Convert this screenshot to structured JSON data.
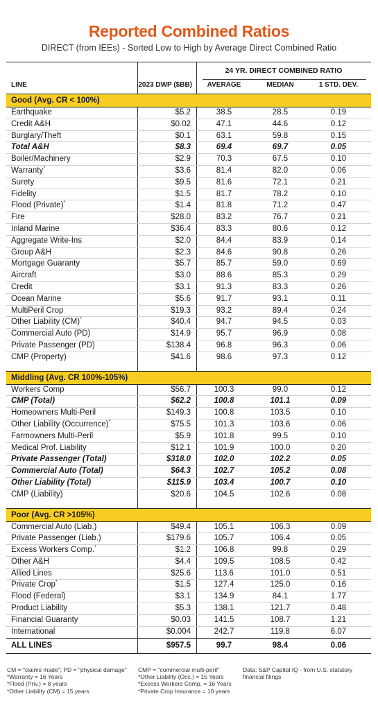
{
  "title": "Reported Combined Ratios",
  "subtitle": "DIRECT (from IEEs) - Sorted Low to High by Average Direct Combined Ratio",
  "header": {
    "group": "24 YR. DIRECT COMBINED RATIO",
    "line": "LINE",
    "dwp": "2023 DWP ($BB)",
    "average": "AVERAGE",
    "median": "MEDIAN",
    "std": "1 STD. DEV."
  },
  "sections": [
    {
      "name": "Good (Avg. CR < 100%)",
      "rows": [
        {
          "line": "Earthquake",
          "mark": "",
          "dwp": "$5.2",
          "avg": "38.5",
          "med": "28.5",
          "std": "0.19",
          "bold": false
        },
        {
          "line": "Credit A&H",
          "mark": "",
          "dwp": "$0.02",
          "avg": "47.1",
          "med": "44.6",
          "std": "0.12",
          "bold": false
        },
        {
          "line": "Burglary/Theft",
          "mark": "",
          "dwp": "$0.1",
          "avg": "63.1",
          "med": "59.8",
          "std": "0.15",
          "bold": false
        },
        {
          "line": "Total A&H",
          "mark": "",
          "dwp": "$8.3",
          "avg": "69.4",
          "med": "69.7",
          "std": "0.05",
          "bold": true
        },
        {
          "line": "Boiler/Machinery",
          "mark": "",
          "dwp": "$2.9",
          "avg": "70.3",
          "med": "67.5",
          "std": "0.10",
          "bold": false
        },
        {
          "line": "Warranty",
          "mark": "*",
          "dwp": "$3.6",
          "avg": "81.4",
          "med": "82.0",
          "std": "0.06",
          "bold": false
        },
        {
          "line": "Surety",
          "mark": "",
          "dwp": "$9.5",
          "avg": "81.6",
          "med": "72.1",
          "std": "0.21",
          "bold": false
        },
        {
          "line": "Fidelity",
          "mark": "",
          "dwp": "$1.5",
          "avg": "81.7",
          "med": "78.2",
          "std": "0.10",
          "bold": false
        },
        {
          "line": "Flood (Private)",
          "mark": "*",
          "dwp": "$1.4",
          "avg": "81.8",
          "med": "71.2",
          "std": "0.47",
          "bold": false
        },
        {
          "line": "Fire",
          "mark": "",
          "dwp": "$28.0",
          "avg": "83.2",
          "med": "76.7",
          "std": "0.21",
          "bold": false
        },
        {
          "line": "Inland Marine",
          "mark": "",
          "dwp": "$36.4",
          "avg": "83.3",
          "med": "80.6",
          "std": "0.12",
          "bold": false
        },
        {
          "line": "Aggregate Write-Ins",
          "mark": "",
          "dwp": "$2.0",
          "avg": "84.4",
          "med": "83.9",
          "std": "0.14",
          "bold": false
        },
        {
          "line": "Group A&H",
          "mark": "",
          "dwp": "$2.3",
          "avg": "84.6",
          "med": "90.8",
          "std": "0.26",
          "bold": false
        },
        {
          "line": "Mortgage Guaranty",
          "mark": "",
          "dwp": "$5.7",
          "avg": "85.7",
          "med": "59.0",
          "std": "0.69",
          "bold": false
        },
        {
          "line": "Aircraft",
          "mark": "",
          "dwp": "$3.0",
          "avg": "88.6",
          "med": "85.3",
          "std": "0.29",
          "bold": false
        },
        {
          "line": "Credit",
          "mark": "",
          "dwp": "$3.1",
          "avg": "91.3",
          "med": "83.3",
          "std": "0.26",
          "bold": false
        },
        {
          "line": "Ocean Marine",
          "mark": "",
          "dwp": "$5.6",
          "avg": "91.7",
          "med": "93.1",
          "std": "0.11",
          "bold": false
        },
        {
          "line": "MultiPeril Crop",
          "mark": "",
          "dwp": "$19.3",
          "avg": "93.2",
          "med": "89.4",
          "std": "0.24",
          "bold": false
        },
        {
          "line": "Other Liability (CM)",
          "mark": "*",
          "dwp": "$40.4",
          "avg": "94.7",
          "med": "94.5",
          "std": "0.03",
          "bold": false
        },
        {
          "line": "Commercial Auto (PD)",
          "mark": "",
          "dwp": "$14.9",
          "avg": "95.7",
          "med": "96.9",
          "std": "0.08",
          "bold": false
        },
        {
          "line": "Private Passenger (PD)",
          "mark": "",
          "dwp": "$138.4",
          "avg": "96.8",
          "med": "96.3",
          "std": "0.06",
          "bold": false
        },
        {
          "line": "CMP (Property)",
          "mark": "",
          "dwp": "$41.6",
          "avg": "98.6",
          "med": "97.3",
          "std": "0.12",
          "bold": false
        }
      ]
    },
    {
      "name": "Middling (Avg. CR 100%-105%)",
      "rows": [
        {
          "line": "Workers Comp",
          "mark": "",
          "dwp": "$56.7",
          "avg": "100.3",
          "med": "99.0",
          "std": "0.12",
          "bold": false
        },
        {
          "line": "CMP (Total)",
          "mark": "",
          "dwp": "$62.2",
          "avg": "100.8",
          "med": "101.1",
          "std": "0.09",
          "bold": true
        },
        {
          "line": "Homeowners Multi-Peril",
          "mark": "",
          "dwp": "$149.3",
          "avg": "100.8",
          "med": "103.5",
          "std": "0.10",
          "bold": false
        },
        {
          "line": "Other Liability (Occurrence)",
          "mark": "*",
          "dwp": "$75.5",
          "avg": "101.3",
          "med": "103.6",
          "std": "0.06",
          "bold": false
        },
        {
          "line": "Farmowners Multi-Peril",
          "mark": "",
          "dwp": "$5.9",
          "avg": "101.8",
          "med": "99.5",
          "std": "0.10",
          "bold": false
        },
        {
          "line": "Medical Prof. Liability",
          "mark": "",
          "dwp": "$12.1",
          "avg": "101.9",
          "med": "100.0",
          "std": "0.20",
          "bold": false
        },
        {
          "line": "Private Passenger (Total)",
          "mark": "",
          "dwp": "$318.0",
          "avg": "102.0",
          "med": "102.2",
          "std": "0.05",
          "bold": true
        },
        {
          "line": "Commercial Auto (Total)",
          "mark": "",
          "dwp": "$64.3",
          "avg": "102.7",
          "med": "105.2",
          "std": "0.08",
          "bold": true
        },
        {
          "line": "Other Liability (Total)",
          "mark": "",
          "dwp": "$115.9",
          "avg": "103.4",
          "med": "100.7",
          "std": "0.10",
          "bold": true
        },
        {
          "line": "CMP (Liability)",
          "mark": "",
          "dwp": "$20.6",
          "avg": "104.5",
          "med": "102.6",
          "std": "0.08",
          "bold": false
        }
      ]
    },
    {
      "name": "Poor (Avg. CR >105%)",
      "rows": [
        {
          "line": "Commercial Auto (Liab.)",
          "mark": "",
          "dwp": "$49.4",
          "avg": "105.1",
          "med": "106.3",
          "std": "0.09",
          "bold": false
        },
        {
          "line": "Private Passenger (Liab.)",
          "mark": "",
          "dwp": "$179.6",
          "avg": "105.7",
          "med": "106.4",
          "std": "0.05",
          "bold": false
        },
        {
          "line": "Excess Workers Comp.",
          "mark": "*",
          "dwp": "$1.2",
          "avg": "106.8",
          "med": "99.8",
          "std": "0.29",
          "bold": false
        },
        {
          "line": "Other A&H",
          "mark": "",
          "dwp": "$4.4",
          "avg": "109.5",
          "med": "108.5",
          "std": "0.42",
          "bold": false
        },
        {
          "line": "Allied Lines",
          "mark": "",
          "dwp": "$25.6",
          "avg": "113.6",
          "med": "101.0",
          "std": "0.51",
          "bold": false
        },
        {
          "line": "Private Crop",
          "mark": "*",
          "dwp": "$1.5",
          "avg": "127.4",
          "med": "125.0",
          "std": "0.16",
          "bold": false
        },
        {
          "line": "Flood (Federal)",
          "mark": "",
          "dwp": "$3.1",
          "avg": "134.9",
          "med": "84.1",
          "std": "1.77",
          "bold": false
        },
        {
          "line": "Product Liability",
          "mark": "",
          "dwp": "$5.3",
          "avg": "138.1",
          "med": "121.7",
          "std": "0.48",
          "bold": false
        },
        {
          "line": "Financial Guaranty",
          "mark": "",
          "dwp": "$0.03",
          "avg": "141.5",
          "med": "108.7",
          "std": "1.21",
          "bold": false
        },
        {
          "line": "International",
          "mark": "",
          "dwp": "$0.004",
          "avg": "242.7",
          "med": "119.8",
          "std": "6.07",
          "bold": false
        }
      ]
    }
  ],
  "total": {
    "line": "ALL LINES",
    "dwp": "$957.5",
    "avg": "99.7",
    "med": "98.4",
    "std": "0.06"
  },
  "notes": {
    "col1": [
      "CM = \"claims made\"; PD = \"physical damage\"",
      "*Warranty = 16 Years",
      "*Flood (Priv.) = 8 years",
      "*Other Liability (CM) = 15 years"
    ],
    "col2": [
      "CMP = \"commercial multi-peril\"",
      "*Other Liability (Occ.) = 15 Years",
      "*Excess Workers Comp. = 16 Years",
      "*Private Crop Insurance = 10 years"
    ],
    "col3": [
      "Data: S&P Capital IQ - from U.S. statutory",
      "financial filings"
    ]
  },
  "colors": {
    "accent": "#e0591c",
    "section": "#f7cd22"
  }
}
